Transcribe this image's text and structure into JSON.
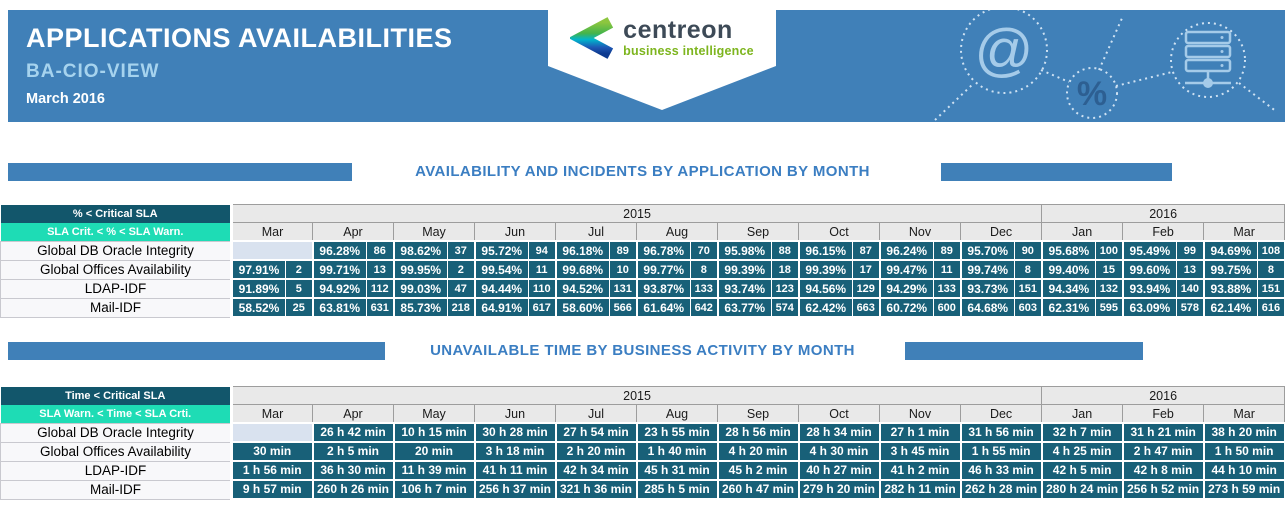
{
  "header": {
    "title": "APPLICATIONS AVAILABILITIES",
    "subtitle": "BA-CIO-VIEW",
    "period": "March 2016",
    "logo": {
      "name": "centreon",
      "tagline": "business intelligence"
    }
  },
  "colors": {
    "banner_blue": "#4080b8",
    "section_title_blue": "#3b7ec2",
    "legend_dark_teal": "#12566b",
    "legend_turquoise": "#1edcb5",
    "data_cell_teal": "#186078",
    "empty_cell_blue": "#d9e2ef",
    "logo_green": "#7db51e"
  },
  "sections": [
    {
      "title": "AVAILABILITY AND INCIDENTS BY APPLICATION BY MONTH"
    },
    {
      "title": "UNAVAILABLE TIME BY BUSINESS ACTIVITY BY MONTH"
    }
  ],
  "availability_table": {
    "legend_critical": "% < Critical SLA",
    "legend_warning": "SLA Crit. < % < SLA Warn.",
    "years": [
      {
        "label": "2015",
        "span": 10
      },
      {
        "label": "2016",
        "span": 3
      }
    ],
    "months": [
      "Mar",
      "Apr",
      "May",
      "Jun",
      "Jul",
      "Aug",
      "Sep",
      "Oct",
      "Nov",
      "Dec",
      "Jan",
      "Feb",
      "Mar"
    ],
    "rows": [
      {
        "label": "Global DB Oracle Integrity",
        "cells": [
          null,
          {
            "pct": "96.28%",
            "count": "86"
          },
          {
            "pct": "98.62%",
            "count": "37"
          },
          {
            "pct": "95.72%",
            "count": "94"
          },
          {
            "pct": "96.18%",
            "count": "89"
          },
          {
            "pct": "96.78%",
            "count": "70"
          },
          {
            "pct": "95.98%",
            "count": "88"
          },
          {
            "pct": "96.15%",
            "count": "87"
          },
          {
            "pct": "96.24%",
            "count": "89"
          },
          {
            "pct": "95.70%",
            "count": "90"
          },
          {
            "pct": "95.68%",
            "count": "100"
          },
          {
            "pct": "95.49%",
            "count": "99"
          },
          {
            "pct": "94.69%",
            "count": "108"
          }
        ]
      },
      {
        "label": "Global Offices Availability",
        "cells": [
          {
            "pct": "97.91%",
            "count": "2"
          },
          {
            "pct": "99.71%",
            "count": "13"
          },
          {
            "pct": "99.95%",
            "count": "2"
          },
          {
            "pct": "99.54%",
            "count": "11"
          },
          {
            "pct": "99.68%",
            "count": "10"
          },
          {
            "pct": "99.77%",
            "count": "8"
          },
          {
            "pct": "99.39%",
            "count": "18"
          },
          {
            "pct": "99.39%",
            "count": "17"
          },
          {
            "pct": "99.47%",
            "count": "11"
          },
          {
            "pct": "99.74%",
            "count": "8"
          },
          {
            "pct": "99.40%",
            "count": "15"
          },
          {
            "pct": "99.60%",
            "count": "13"
          },
          {
            "pct": "99.75%",
            "count": "8"
          }
        ]
      },
      {
        "label": "LDAP-IDF",
        "cells": [
          {
            "pct": "91.89%",
            "count": "5"
          },
          {
            "pct": "94.92%",
            "count": "112"
          },
          {
            "pct": "99.03%",
            "count": "47"
          },
          {
            "pct": "94.44%",
            "count": "110"
          },
          {
            "pct": "94.52%",
            "count": "131"
          },
          {
            "pct": "93.87%",
            "count": "133"
          },
          {
            "pct": "93.74%",
            "count": "123"
          },
          {
            "pct": "94.56%",
            "count": "129"
          },
          {
            "pct": "94.29%",
            "count": "133"
          },
          {
            "pct": "93.73%",
            "count": "151"
          },
          {
            "pct": "94.34%",
            "count": "132"
          },
          {
            "pct": "93.94%",
            "count": "140"
          },
          {
            "pct": "93.88%",
            "count": "151"
          }
        ]
      },
      {
        "label": "Mail-IDF",
        "cells": [
          {
            "pct": "58.52%",
            "count": "25"
          },
          {
            "pct": "63.81%",
            "count": "631"
          },
          {
            "pct": "85.73%",
            "count": "218"
          },
          {
            "pct": "64.91%",
            "count": "617"
          },
          {
            "pct": "58.60%",
            "count": "566"
          },
          {
            "pct": "61.64%",
            "count": "642"
          },
          {
            "pct": "63.77%",
            "count": "574"
          },
          {
            "pct": "62.42%",
            "count": "663"
          },
          {
            "pct": "60.72%",
            "count": "600"
          },
          {
            "pct": "64.68%",
            "count": "603"
          },
          {
            "pct": "62.31%",
            "count": "595"
          },
          {
            "pct": "63.09%",
            "count": "578"
          },
          {
            "pct": "62.14%",
            "count": "616"
          }
        ]
      }
    ]
  },
  "unavailable_table": {
    "legend_critical": "Time < Critical SLA",
    "legend_warning": "SLA Warn. < Time < SLA Crti.",
    "years": [
      {
        "label": "2015",
        "span": 10
      },
      {
        "label": "2016",
        "span": 3
      }
    ],
    "months": [
      "Mar",
      "Apr",
      "May",
      "Jun",
      "Jul",
      "Aug",
      "Sep",
      "Oct",
      "Nov",
      "Dec",
      "Jan",
      "Feb",
      "Mar"
    ],
    "rows": [
      {
        "label": "Global DB Oracle Integrity",
        "cells": [
          null,
          "26 h 42 min",
          "10 h 15 min",
          "30 h 28 min",
          "27 h 54 min",
          "23 h 55 min",
          "28 h 56 min",
          "28 h 34 min",
          "27 h 1 min",
          "31 h 56 min",
          "32 h 7 min",
          "31 h 21 min",
          "38 h 20 min"
        ]
      },
      {
        "label": "Global Offices Availability",
        "cells": [
          "30 min",
          "2 h 5 min",
          "20 min",
          "3 h 18 min",
          "2 h 20 min",
          "1 h 40 min",
          "4 h 20 min",
          "4 h 30 min",
          "3 h 45 min",
          "1 h 55 min",
          "4 h 25 min",
          "2 h 47 min",
          "1 h 50 min"
        ]
      },
      {
        "label": "LDAP-IDF",
        "cells": [
          "1 h 56 min",
          "36 h 30 min",
          "11 h 39 min",
          "41 h 11 min",
          "42 h 34 min",
          "45 h 31 min",
          "45 h 2 min",
          "40 h 27 min",
          "41 h 2 min",
          "46 h 33 min",
          "42 h 5 min",
          "42 h 8 min",
          "44 h 10 min"
        ]
      },
      {
        "label": "Mail-IDF",
        "cells": [
          "9 h 57 min",
          "260 h 26 min",
          "106 h 7 min",
          "256 h 37 min",
          "321 h 36 min",
          "285 h 5 min",
          "260 h 47 min",
          "279 h 20 min",
          "282 h 11 min",
          "262 h 28 min",
          "280 h 24 min",
          "256 h 52 min",
          "273 h 59 min"
        ]
      }
    ]
  }
}
